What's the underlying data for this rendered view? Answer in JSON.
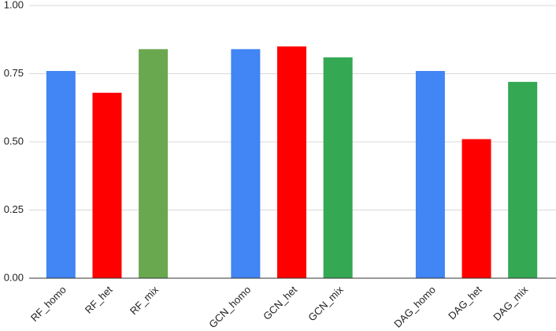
{
  "chart_data": {
    "type": "bar",
    "categories": [
      "RF_homo",
      "RF_het",
      "RF_mix",
      null,
      "GCN_homo",
      "GCN_het",
      "GCN_mix",
      null,
      "DAG_homo",
      "DAG_het",
      "DAG_mix"
    ],
    "values": [
      0.76,
      0.68,
      0.84,
      null,
      0.84,
      0.85,
      0.81,
      null,
      0.76,
      0.51,
      0.72
    ],
    "colors": [
      "#4285f4",
      "#ff0000",
      "#6aa84f",
      null,
      "#4285f4",
      "#ff0000",
      "#34a853",
      null,
      "#4285f4",
      "#ff0000",
      "#34a853"
    ],
    "ylim": [
      0,
      1
    ],
    "yticks": [
      {
        "value": 0,
        "label": "0.00"
      },
      {
        "value": 0.25,
        "label": "0.25"
      },
      {
        "value": 0.5,
        "label": "0.50"
      },
      {
        "value": 0.75,
        "label": "0.75"
      },
      {
        "value": 1,
        "label": "1.00"
      }
    ],
    "grid": true
  }
}
